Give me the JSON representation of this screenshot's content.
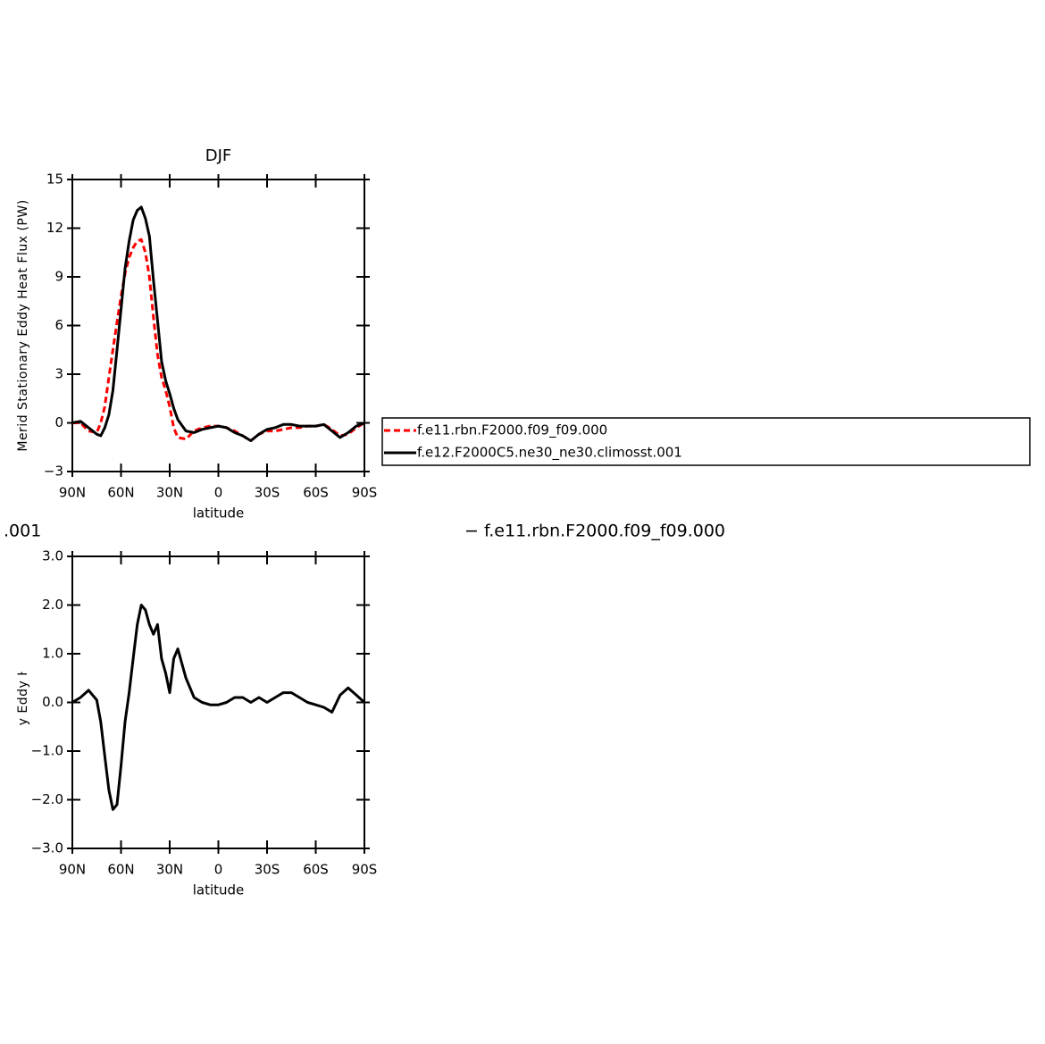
{
  "chart_data": [
    {
      "type": "line",
      "title": "DJF",
      "ylabel": "Merid Stationary Eddy Heat Flux (PW)",
      "xlabel": "latitude",
      "x": [
        90,
        85,
        80,
        75,
        72.5,
        70,
        67.5,
        65,
        62.5,
        60,
        57.5,
        55,
        52.5,
        50,
        47.5,
        45,
        42.5,
        40,
        37.5,
        35,
        32.5,
        30,
        27.5,
        25,
        20,
        15,
        10,
        5,
        0,
        -5,
        -10,
        -15,
        -20,
        -25,
        -30,
        -35,
        -40,
        -45,
        -50,
        -55,
        -60,
        -65,
        -70,
        -75,
        -80,
        -85,
        -90
      ],
      "series": [
        {
          "name": "f.e11.rbn.F2000.f09_f09.000",
          "color": "#ff0000",
          "dashed": true,
          "values": [
            0,
            0,
            -0.5,
            -0.6,
            0,
            1.0,
            2.8,
            4.5,
            6.2,
            7.8,
            9.2,
            10.2,
            10.8,
            11.2,
            11.3,
            10.5,
            9,
            6.5,
            4.2,
            2.8,
            2.0,
            1.0,
            -0.3,
            -0.9,
            -1.0,
            -0.5,
            -0.3,
            -0.2,
            -0.2,
            -0.3,
            -0.5,
            -0.8,
            -1.1,
            -0.7,
            -0.5,
            -0.5,
            -0.4,
            -0.3,
            -0.3,
            -0.2,
            -0.2,
            -0.1,
            -0.4,
            -0.8,
            -0.7,
            -0.3,
            0
          ]
        },
        {
          "name": "f.e12.F2000C5.ne30_ne30.climosst.001",
          "color": "#000000",
          "dashed": false,
          "values": [
            0,
            0.1,
            -0.3,
            -0.7,
            -0.8,
            -0.3,
            0.5,
            2,
            4.5,
            7,
            9.5,
            11.2,
            12.5,
            13.1,
            13.3,
            12.6,
            11.5,
            8.8,
            6.3,
            3.8,
            2.6,
            1.8,
            0.9,
            0.2,
            -0.5,
            -0.6,
            -0.4,
            -0.3,
            -0.2,
            -0.3,
            -0.6,
            -0.8,
            -1.1,
            -0.7,
            -0.4,
            -0.3,
            -0.1,
            -0.1,
            -0.2,
            -0.2,
            -0.2,
            -0.1,
            -0.5,
            -0.9,
            -0.6,
            -0.2,
            0
          ]
        }
      ],
      "xlim": [
        90,
        -90
      ],
      "xticks": [
        {
          "value": 90,
          "label": "90N"
        },
        {
          "value": 60,
          "label": "60N"
        },
        {
          "value": 30,
          "label": "30N"
        },
        0,
        {
          "value": -30,
          "label": "30S"
        },
        {
          "value": -60,
          "label": "60S"
        },
        {
          "value": -90,
          "label": "90S"
        }
      ],
      "ylim": [
        -3,
        15
      ],
      "yticks": [
        {
          "value": -3,
          "label": "−3"
        },
        0,
        3,
        6,
        9,
        12,
        15
      ],
      "legend": "right"
    },
    {
      "type": "line",
      "ylabel": "Merid Stationary Eddy Heat Flux (PW)",
      "xlabel": "latitude",
      "annotations": [
        ".001",
        "− f.e11.rbn.F2000.f09_f09.000"
      ],
      "x": [
        90,
        85,
        80,
        75,
        72.5,
        70,
        67.5,
        65,
        62.5,
        60,
        57.5,
        55,
        52.5,
        50,
        47.5,
        45,
        42.5,
        40,
        37.5,
        35,
        32.5,
        30,
        27.5,
        25,
        20,
        15,
        10,
        5,
        0,
        -5,
        -10,
        -15,
        -20,
        -25,
        -30,
        -35,
        -40,
        -45,
        -50,
        -55,
        -60,
        -65,
        -70,
        -75,
        -80,
        -85,
        -90
      ],
      "series": [
        {
          "color": "#000000",
          "dashed": false,
          "values": [
            0,
            0.1,
            0.25,
            0.05,
            -0.4,
            -1.1,
            -1.8,
            -2.2,
            -2.1,
            -1.3,
            -0.4,
            0.2,
            0.9,
            1.6,
            2.0,
            1.9,
            1.6,
            1.4,
            1.6,
            0.9,
            0.6,
            0.2,
            0.9,
            1.1,
            0.5,
            0.1,
            0.0,
            -0.05,
            -0.05,
            0.0,
            0.1,
            0.1,
            0.0,
            0.1,
            0.0,
            0.1,
            0.2,
            0.2,
            0.1,
            0.0,
            -0.05,
            -0.1,
            -0.2,
            0.15,
            0.3,
            0.15,
            0
          ]
        }
      ],
      "xlim": [
        90,
        -90
      ],
      "xticks": [
        {
          "value": 90,
          "label": "90N"
        },
        {
          "value": 60,
          "label": "60N"
        },
        {
          "value": 30,
          "label": "30N"
        },
        0,
        {
          "value": -30,
          "label": "30S"
        },
        {
          "value": -60,
          "label": "60S"
        },
        {
          "value": -90,
          "label": "90S"
        }
      ],
      "ylim": [
        -3,
        3
      ],
      "yticks": [
        {
          "value": -3,
          "label": "−3.0"
        },
        {
          "value": -2,
          "label": "−2.0"
        },
        {
          "value": -1,
          "label": "−1.0"
        },
        {
          "value": 0,
          "label": "0.0"
        },
        {
          "value": 1,
          "label": "1.0"
        },
        {
          "value": 2,
          "label": "2.0"
        },
        {
          "value": 3,
          "label": "3.0"
        }
      ]
    }
  ]
}
